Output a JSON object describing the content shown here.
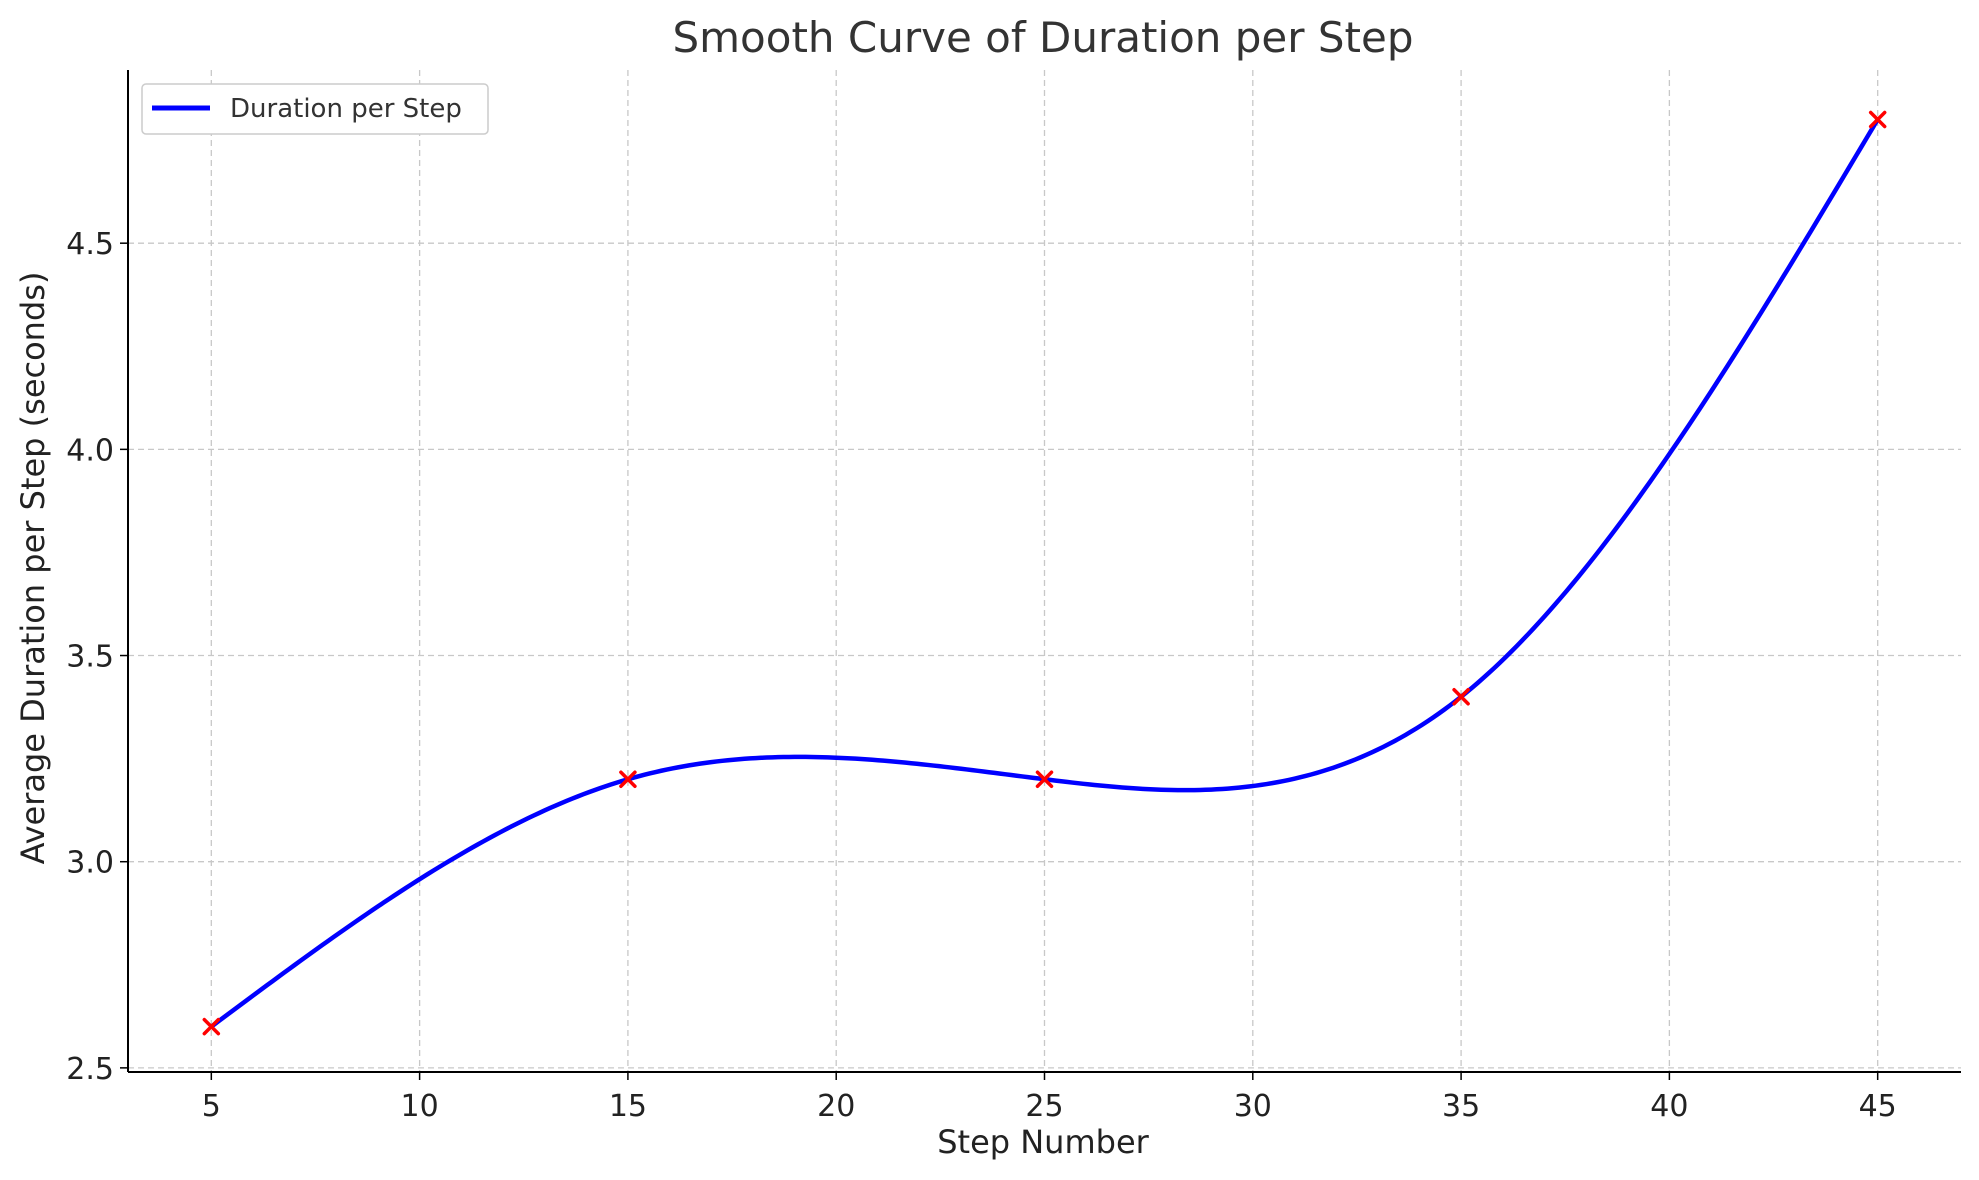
{
  "chart_data": {
    "type": "line",
    "title": "Smooth Curve of Duration per Step",
    "xlabel": "Step Number",
    "ylabel": "Average Duration per Step (seconds)",
    "xlim": [
      3,
      47
    ],
    "ylim": [
      2.49,
      4.92
    ],
    "x_ticks": [
      5,
      10,
      15,
      20,
      25,
      30,
      35,
      40,
      45
    ],
    "y_ticks": [
      2.5,
      3.0,
      3.5,
      4.0,
      4.5
    ],
    "x_tick_labels": [
      "5",
      "10",
      "15",
      "20",
      "25",
      "30",
      "35",
      "40",
      "45"
    ],
    "y_tick_labels": [
      "2.5",
      "3.0",
      "3.5",
      "4.0",
      "4.5"
    ],
    "grid": true,
    "legend_position": "top-left",
    "series": [
      {
        "name": "Duration per Step",
        "style": "smooth-line",
        "color": "#0000ff",
        "x": [
          5,
          15,
          25,
          35,
          45
        ],
        "y": [
          2.6,
          3.2,
          3.2,
          3.4,
          4.8
        ]
      }
    ],
    "markers": {
      "symbol": "x",
      "color": "#ff0000",
      "x": [
        5,
        15,
        25,
        35,
        45
      ],
      "y": [
        2.6,
        3.2,
        3.2,
        3.4,
        4.8
      ]
    }
  }
}
